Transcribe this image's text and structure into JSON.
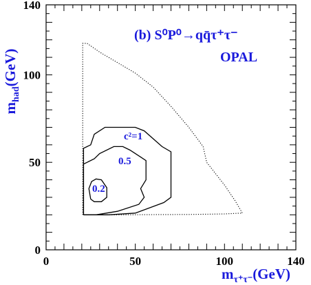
{
  "chart_data": {
    "type": "line",
    "title_line1": "(b) S⁰P⁰→qq̄τ⁺τ⁻",
    "title_line2": "OPAL",
    "xlabel_main": "m",
    "xlabel_sub": "τ⁺τ⁻",
    "xlabel_unit": "(GeV)",
    "ylabel_main": "m",
    "ylabel_sub": "had",
    "ylabel_unit": "(GeV)",
    "xlim": [
      0,
      140
    ],
    "ylim": [
      0,
      140
    ],
    "xticks": [
      0,
      50,
      100,
      140
    ],
    "yticks": [
      0,
      50,
      100,
      140
    ],
    "colors": {
      "text": "#1a1adc",
      "line": "#000000"
    },
    "series": [
      {
        "label": "",
        "style": "dotted",
        "points": [
          [
            20.5,
            20
          ],
          [
            20.5,
            118
          ],
          [
            23,
            118
          ],
          [
            30,
            113
          ],
          [
            40,
            107
          ],
          [
            50,
            101
          ],
          [
            60,
            93
          ],
          [
            70,
            82
          ],
          [
            80,
            70
          ],
          [
            88,
            59
          ],
          [
            90,
            50
          ],
          [
            100,
            37
          ],
          [
            106,
            28
          ],
          [
            110,
            21
          ],
          [
            100,
            20.5
          ],
          [
            80,
            20.2
          ],
          [
            60,
            20.1
          ],
          [
            40,
            20
          ],
          [
            20.5,
            20
          ]
        ]
      },
      {
        "label": "c²=1",
        "style": "solid",
        "points": [
          [
            21,
            20
          ],
          [
            21,
            58
          ],
          [
            25,
            60
          ],
          [
            27,
            66
          ],
          [
            33,
            70
          ],
          [
            50,
            70
          ],
          [
            55,
            68
          ],
          [
            65,
            59
          ],
          [
            70,
            56
          ],
          [
            70,
            30
          ],
          [
            66,
            27
          ],
          [
            50,
            21
          ],
          [
            35,
            20
          ],
          [
            21,
            20
          ]
        ]
      },
      {
        "label": "0.5",
        "style": "solid",
        "points": [
          [
            21,
            20
          ],
          [
            21,
            49
          ],
          [
            27,
            52
          ],
          [
            30,
            55
          ],
          [
            38,
            59
          ],
          [
            43,
            59
          ],
          [
            47,
            57
          ],
          [
            53,
            53
          ],
          [
            56,
            51
          ],
          [
            56,
            40
          ],
          [
            53,
            35
          ],
          [
            55,
            30
          ],
          [
            52,
            26
          ],
          [
            40,
            22
          ],
          [
            28,
            20
          ],
          [
            21,
            20
          ]
        ]
      },
      {
        "label": "0.2",
        "style": "solid",
        "points": [
          [
            25,
            29
          ],
          [
            24,
            35
          ],
          [
            25.5,
            39
          ],
          [
            28,
            40.5
          ],
          [
            31,
            40
          ],
          [
            34,
            35.5
          ],
          [
            34,
            30
          ],
          [
            31,
            27.5
          ],
          [
            27,
            27.5
          ],
          [
            25,
            29
          ]
        ]
      }
    ]
  }
}
